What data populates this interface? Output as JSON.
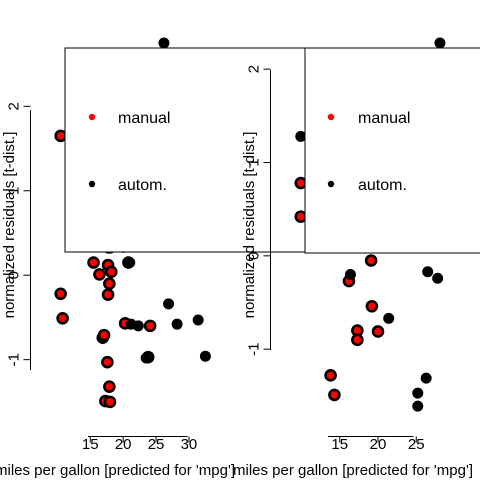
{
  "chart_data": [
    {
      "type": "scatter",
      "xlabel": "miles per gallon [predicted for 'mpg']",
      "ylabel": "normalized residuals [t-dist.]",
      "xticks": [
        15,
        20,
        25,
        30
      ],
      "yticks": [
        -1,
        0,
        1,
        2
      ],
      "xlim": [
        10.4,
        33.2
      ],
      "ylim": [
        -1.62,
        2.75
      ],
      "grid": false,
      "legend": {
        "placement": "top-left",
        "entries": [
          {
            "label": "manual",
            "color": "#ff0000"
          },
          {
            "label": "autom.",
            "color": "#000000"
          }
        ]
      },
      "series": [
        {
          "name": "manual",
          "color": "#ff0000",
          "points": [
            [
              10.5,
              -0.22
            ],
            [
              10.8,
              -0.51
            ],
            [
              10.5,
              1.65
            ],
            [
              15.5,
              0.15
            ],
            [
              16.4,
              0.01
            ],
            [
              16.9,
              -0.74
            ],
            [
              17.1,
              -0.71
            ],
            [
              17.3,
              -1.49
            ],
            [
              17.6,
              -1.03
            ],
            [
              17.7,
              0.12
            ],
            [
              17.7,
              -0.23
            ],
            [
              17.9,
              -0.1
            ],
            [
              17.9,
              -1.32
            ],
            [
              18.2,
              0.04
            ],
            [
              18.0,
              -1.5
            ],
            [
              18.0,
              0.33
            ],
            [
              20.3,
              -0.57
            ],
            [
              20.8,
              0.15
            ],
            [
              23.8,
              -0.97
            ],
            [
              24.1,
              -0.6
            ]
          ]
        },
        {
          "name": "autom.",
          "color": "#000000",
          "points": [
            [
              17.8,
              0.32
            ],
            [
              20.0,
              0.33
            ],
            [
              21.0,
              0.15
            ],
            [
              21.2,
              -0.58
            ],
            [
              22.3,
              -0.6
            ],
            [
              23.5,
              -0.98
            ],
            [
              26.2,
              2.75
            ],
            [
              26.9,
              -0.34
            ],
            [
              28.2,
              -0.58
            ],
            [
              31.4,
              -0.53
            ],
            [
              32.5,
              -0.96
            ]
          ]
        }
      ]
    },
    {
      "type": "scatter",
      "xlabel": "miles per gallon [predicted for 'mpg']",
      "ylabel": "normalized residuals [t-dist.]",
      "xticks": [
        15,
        20,
        25
      ],
      "yticks": [
        -1,
        0,
        1,
        2
      ],
      "xlim": [
        9.8,
        28.5
      ],
      "ylim": [
        -1.63,
        2.28
      ],
      "grid": false,
      "legend": {
        "placement": "top-left",
        "entries": [
          {
            "label": "manual",
            "color": "#ff0000"
          },
          {
            "label": "autom.",
            "color": "#000000"
          }
        ]
      },
      "series": [
        {
          "name": "manual",
          "color": "#ff0000",
          "points": [
            [
              9.9,
              0.42
            ],
            [
              9.9,
              0.78
            ],
            [
              13.8,
              -1.28
            ],
            [
              14.3,
              -1.49
            ],
            [
              16.2,
              -0.27
            ],
            [
              17.3,
              -0.8
            ],
            [
              17.3,
              -0.9
            ],
            [
              19.1,
              -0.05
            ],
            [
              19.2,
              -0.54
            ],
            [
              20.0,
              -0.81
            ]
          ]
        },
        {
          "name": "autom.",
          "color": "#000000",
          "points": [
            [
              9.9,
              1.28
            ],
            [
              16.4,
              -0.2
            ],
            [
              21.4,
              -0.67
            ],
            [
              25.2,
              -1.47
            ],
            [
              25.2,
              -1.61
            ],
            [
              26.3,
              -1.31
            ],
            [
              26.5,
              -0.17
            ],
            [
              27.8,
              -0.24
            ],
            [
              28.1,
              2.28
            ]
          ]
        }
      ]
    }
  ]
}
